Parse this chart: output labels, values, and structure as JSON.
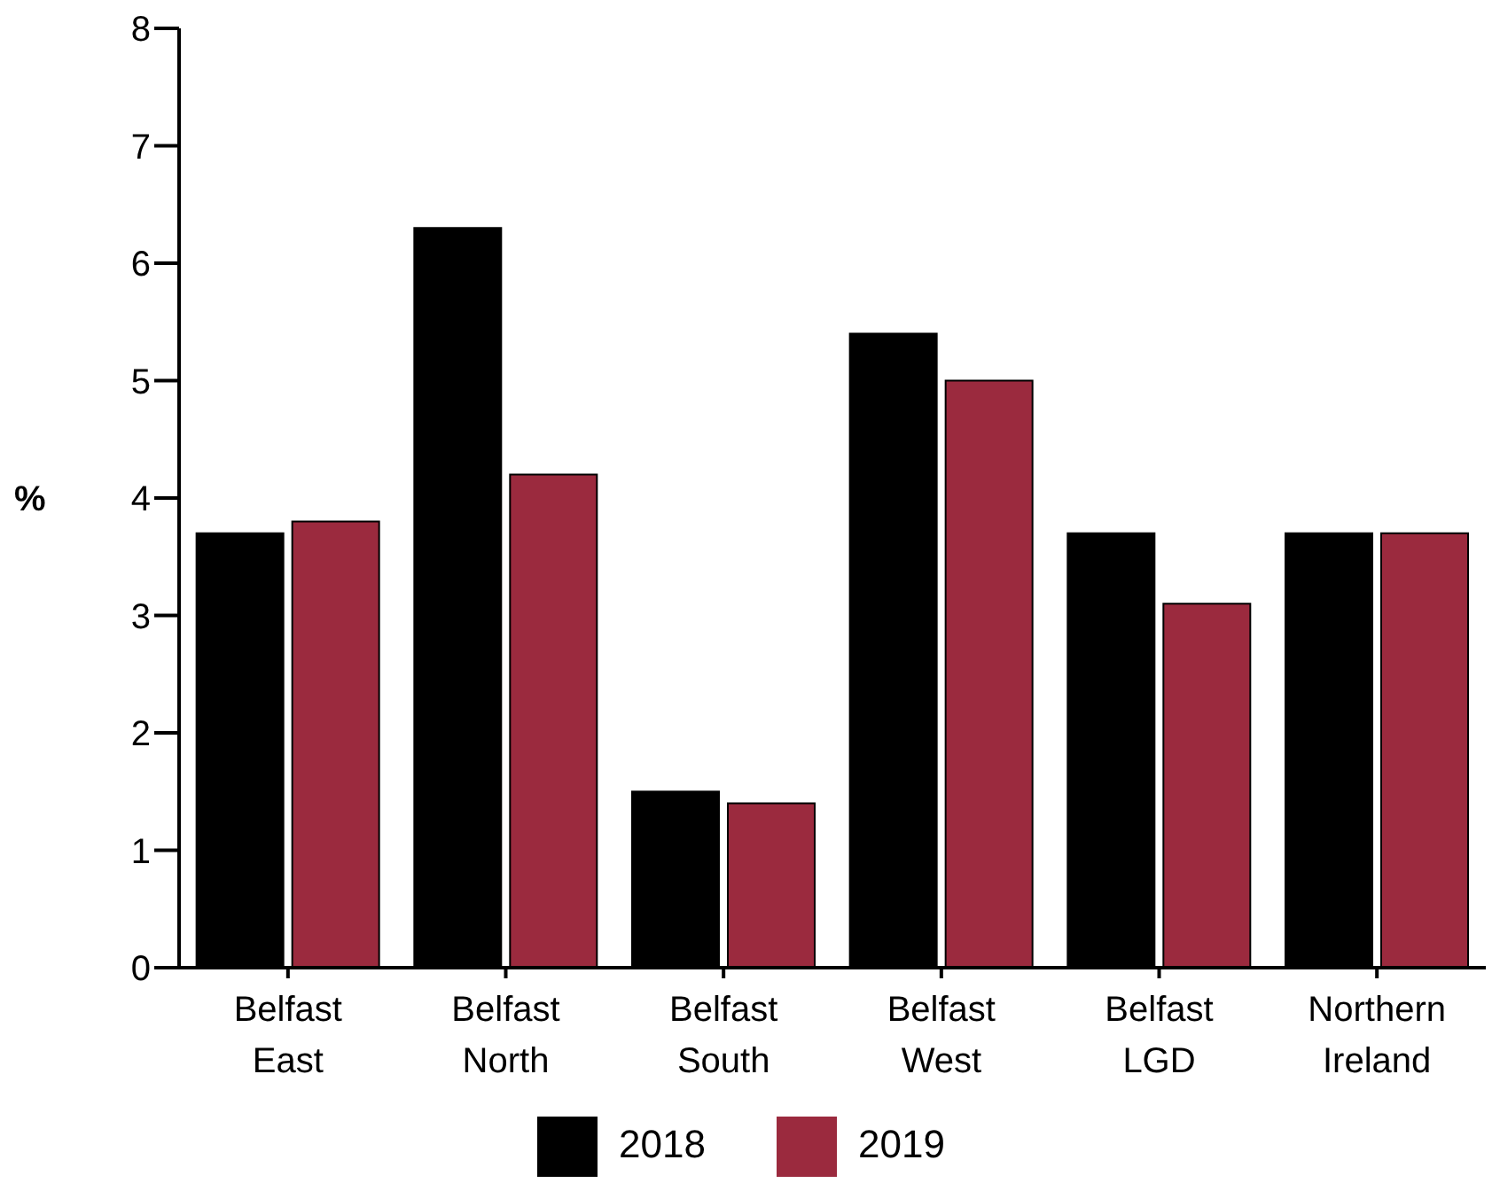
{
  "chart_data": {
    "type": "bar",
    "ylabel": "%",
    "categories": [
      "Belfast East",
      "Belfast North",
      "Belfast South",
      "Belfast West",
      "Belfast LGD",
      "Northern Ireland"
    ],
    "series": [
      {
        "name": "2018",
        "color": "#000000",
        "values": [
          3.7,
          6.3,
          1.5,
          5.4,
          3.7,
          3.7
        ]
      },
      {
        "name": "2019",
        "color": "#9b2a3e",
        "values": [
          3.8,
          4.2,
          1.4,
          5.0,
          3.1,
          3.7
        ]
      }
    ],
    "ylim": [
      0,
      8
    ],
    "yticks": [
      0,
      1,
      2,
      3,
      4,
      5,
      6,
      7,
      8
    ],
    "grid": false,
    "legend": "bottom"
  }
}
